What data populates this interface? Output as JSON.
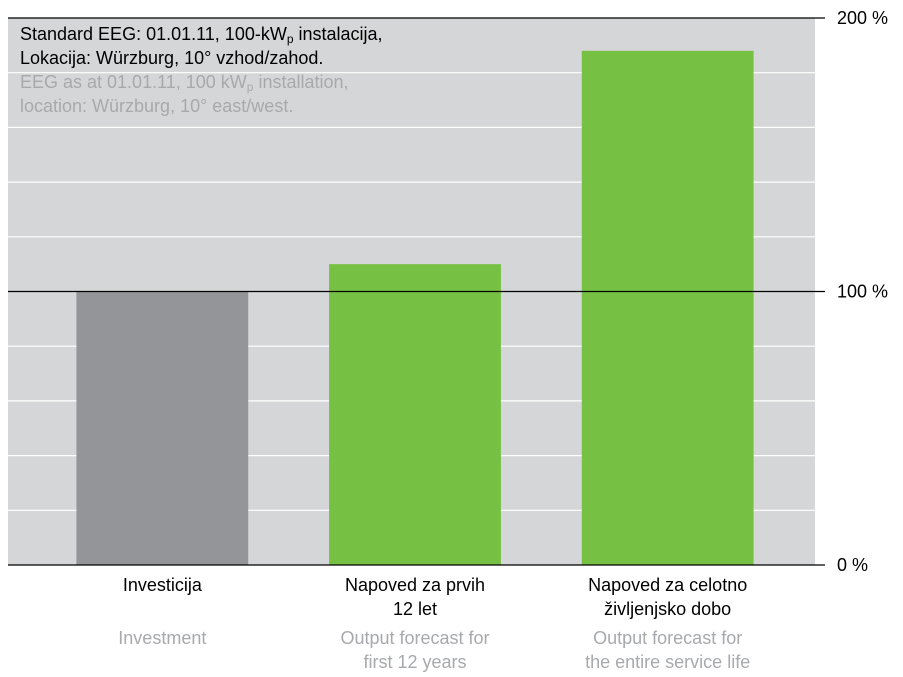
{
  "chart_data": {
    "type": "bar",
    "notes": [
      {
        "color": "#000000",
        "parts": [
          {
            "text": "Standard EEG: 01.01.11, 100-kW"
          },
          {
            "sub": "p"
          },
          {
            "text": " instalacija,"
          }
        ]
      },
      {
        "color": "#000000",
        "parts": [
          {
            "text": "Lokacija: Würzburg, 10° vzhod/zahod."
          }
        ]
      },
      {
        "color": "#a7a9ac",
        "parts": [
          {
            "text": "EEG as at 01.01.11, 100 kW"
          },
          {
            "sub": "p"
          },
          {
            "text": " installation,"
          }
        ]
      },
      {
        "color": "#a7a9ac",
        "parts": [
          {
            "text": "location: Würzburg, 10° east/west."
          }
        ]
      }
    ],
    "categories": [
      [
        "Investicija"
      ],
      [
        "Napoved za prvih",
        "12 let"
      ],
      [
        "Napoved za celotno",
        "življenjsko dobo"
      ]
    ],
    "categories_en": [
      [
        "Investment"
      ],
      [
        "Output forecast for",
        "first 12 years"
      ],
      [
        "Output forecast for",
        "the entire service life"
      ]
    ],
    "values": [
      100,
      110,
      188
    ],
    "colors": [
      "#939598",
      "#76c043",
      "#76c043"
    ],
    "ylim": [
      0,
      200
    ],
    "yticks": [
      {
        "value": 0,
        "label": "0 %"
      },
      {
        "value": 100,
        "label": "100 %"
      },
      {
        "value": 200,
        "label": "200 %"
      }
    ],
    "minor_yticks": [
      20,
      40,
      60,
      80,
      120,
      140,
      160,
      180
    ],
    "grid": true
  }
}
